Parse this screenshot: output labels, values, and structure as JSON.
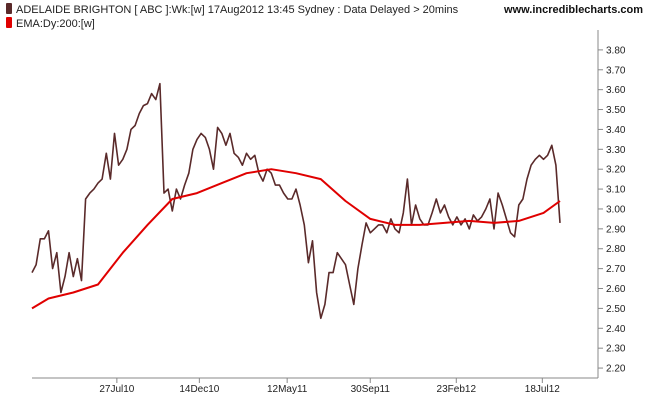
{
  "header": {
    "legend_main": "ADELAIDE BRIGHTON [ ABC ]:Wk:[w]  17Aug2012 13:45 Sydney : Data Delayed > 20mins",
    "legend_ema": "EMA:Dy:200:[w]",
    "site": "www.incrediblecharts.com"
  },
  "colors": {
    "price": "#5a2a2a",
    "ema": "#e00000",
    "background": "#ffffff",
    "axis": "#888888"
  },
  "chart_data": {
    "type": "line",
    "title": "ADELAIDE BRIGHTON [ ABC ]:Wk:[w]  17Aug2012 13:45 Sydney : Data Delayed > 20mins",
    "xlabel": "",
    "ylabel": "",
    "ylim": [
      2.15,
      3.9
    ],
    "grid": false,
    "legend_placement": "top-left",
    "x_tick_labels": [
      "27Jul10",
      "14Dec10",
      "12May11",
      "30Sep11",
      "23Feb12",
      "18Jul12"
    ],
    "y_tick_labels": [
      "2.20",
      "2.30",
      "2.40",
      "2.50",
      "2.60",
      "2.70",
      "2.80",
      "2.90",
      "3.00",
      "3.10",
      "3.20",
      "3.30",
      "3.40",
      "3.50",
      "3.60",
      "3.70",
      "3.80"
    ],
    "x_range": [
      "2010-03-05",
      "2012-08-17"
    ],
    "series": [
      {
        "name": "ADELAIDE BRIGHTON [ ABC ]:Wk:[w]",
        "x": [
          "2010-03-05",
          "2010-03-12",
          "2010-03-19",
          "2010-03-26",
          "2010-04-02",
          "2010-04-09",
          "2010-04-16",
          "2010-04-23",
          "2010-04-30",
          "2010-05-07",
          "2010-05-14",
          "2010-05-21",
          "2010-05-28",
          "2010-06-04",
          "2010-06-11",
          "2010-06-18",
          "2010-06-25",
          "2010-07-02",
          "2010-07-09",
          "2010-07-16",
          "2010-07-23",
          "2010-07-30",
          "2010-08-06",
          "2010-08-13",
          "2010-08-20",
          "2010-08-27",
          "2010-09-03",
          "2010-09-10",
          "2010-09-17",
          "2010-09-24",
          "2010-10-01",
          "2010-10-08",
          "2010-10-15",
          "2010-10-22",
          "2010-10-29",
          "2010-11-05",
          "2010-11-12",
          "2010-11-19",
          "2010-11-26",
          "2010-12-03",
          "2010-12-10",
          "2010-12-17",
          "2010-12-24",
          "2010-12-31",
          "2011-01-07",
          "2011-01-14",
          "2011-01-21",
          "2011-01-28",
          "2011-02-04",
          "2011-02-11",
          "2011-02-18",
          "2011-02-25",
          "2011-03-04",
          "2011-03-11",
          "2011-03-18",
          "2011-03-25",
          "2011-04-01",
          "2011-04-08",
          "2011-04-15",
          "2011-04-22",
          "2011-04-29",
          "2011-05-06",
          "2011-05-13",
          "2011-05-20",
          "2011-05-27",
          "2011-06-03",
          "2011-06-10",
          "2011-06-17",
          "2011-06-24",
          "2011-07-01",
          "2011-07-08",
          "2011-07-15",
          "2011-07-22",
          "2011-07-29",
          "2011-08-05",
          "2011-08-12",
          "2011-08-19",
          "2011-08-26",
          "2011-09-02",
          "2011-09-09",
          "2011-09-16",
          "2011-09-23",
          "2011-09-30",
          "2011-10-07",
          "2011-10-14",
          "2011-10-21",
          "2011-10-28",
          "2011-11-04",
          "2011-11-11",
          "2011-11-18",
          "2011-11-25",
          "2011-12-02",
          "2011-12-09",
          "2011-12-16",
          "2011-12-23",
          "2011-12-30",
          "2012-01-06",
          "2012-01-13",
          "2012-01-20",
          "2012-01-27",
          "2012-02-03",
          "2012-02-10",
          "2012-02-17",
          "2012-02-24",
          "2012-03-02",
          "2012-03-09",
          "2012-03-16",
          "2012-03-23",
          "2012-03-30",
          "2012-04-06",
          "2012-04-13",
          "2012-04-20",
          "2012-04-27",
          "2012-05-04",
          "2012-05-11",
          "2012-05-18",
          "2012-05-25",
          "2012-06-01",
          "2012-06-08",
          "2012-06-15",
          "2012-06-22",
          "2012-06-29",
          "2012-07-06",
          "2012-07-13",
          "2012-07-20",
          "2012-07-27",
          "2012-08-03",
          "2012-08-10",
          "2012-08-17"
        ],
        "values": [
          2.68,
          2.72,
          2.85,
          2.85,
          2.89,
          2.7,
          2.78,
          2.58,
          2.66,
          2.78,
          2.66,
          2.75,
          2.64,
          3.05,
          3.08,
          3.1,
          3.13,
          3.15,
          3.28,
          3.15,
          3.38,
          3.22,
          3.25,
          3.3,
          3.4,
          3.42,
          3.48,
          3.52,
          3.53,
          3.58,
          3.55,
          3.63,
          3.08,
          3.1,
          2.99,
          3.1,
          3.05,
          3.12,
          3.18,
          3.3,
          3.35,
          3.38,
          3.36,
          3.3,
          3.2,
          3.41,
          3.38,
          3.32,
          3.38,
          3.28,
          3.26,
          3.22,
          3.28,
          3.25,
          3.27,
          3.18,
          3.14,
          3.2,
          3.18,
          3.12,
          3.12,
          3.08,
          3.05,
          3.05,
          3.1,
          3.02,
          2.92,
          2.73,
          2.84,
          2.58,
          2.45,
          2.52,
          2.68,
          2.68,
          2.78,
          2.75,
          2.72,
          2.62,
          2.52,
          2.7,
          2.82,
          2.93,
          2.88,
          2.9,
          2.92,
          2.92,
          2.88,
          2.95,
          2.9,
          2.88,
          2.98,
          3.15,
          2.92,
          3.02,
          2.95,
          2.92,
          2.92,
          2.98,
          3.05,
          2.98,
          3.02,
          2.96,
          2.92,
          2.96,
          2.92,
          2.95,
          2.9,
          2.97,
          2.94,
          2.96,
          3.0,
          3.05,
          2.9,
          3.08,
          3.02,
          2.95,
          2.88,
          2.86,
          3.02,
          3.05,
          3.15,
          3.22,
          3.25,
          3.27,
          3.25,
          3.27,
          3.32,
          3.22,
          2.93
        ]
      },
      {
        "name": "EMA:Dy:200:[w]",
        "x": [
          "2010-03-05",
          "2010-04-02",
          "2010-05-14",
          "2010-06-25",
          "2010-08-06",
          "2010-09-17",
          "2010-10-29",
          "2010-12-10",
          "2011-01-21",
          "2011-03-04",
          "2011-04-15",
          "2011-05-27",
          "2011-07-08",
          "2011-08-19",
          "2011-09-30",
          "2011-11-11",
          "2011-12-23",
          "2012-02-03",
          "2012-03-16",
          "2012-04-27",
          "2012-06-08",
          "2012-07-20",
          "2012-08-17"
        ],
        "values": [
          2.5,
          2.55,
          2.58,
          2.62,
          2.78,
          2.92,
          3.05,
          3.08,
          3.13,
          3.18,
          3.2,
          3.18,
          3.15,
          3.04,
          2.95,
          2.92,
          2.92,
          2.93,
          2.94,
          2.93,
          2.94,
          2.98,
          3.04
        ]
      }
    ]
  }
}
